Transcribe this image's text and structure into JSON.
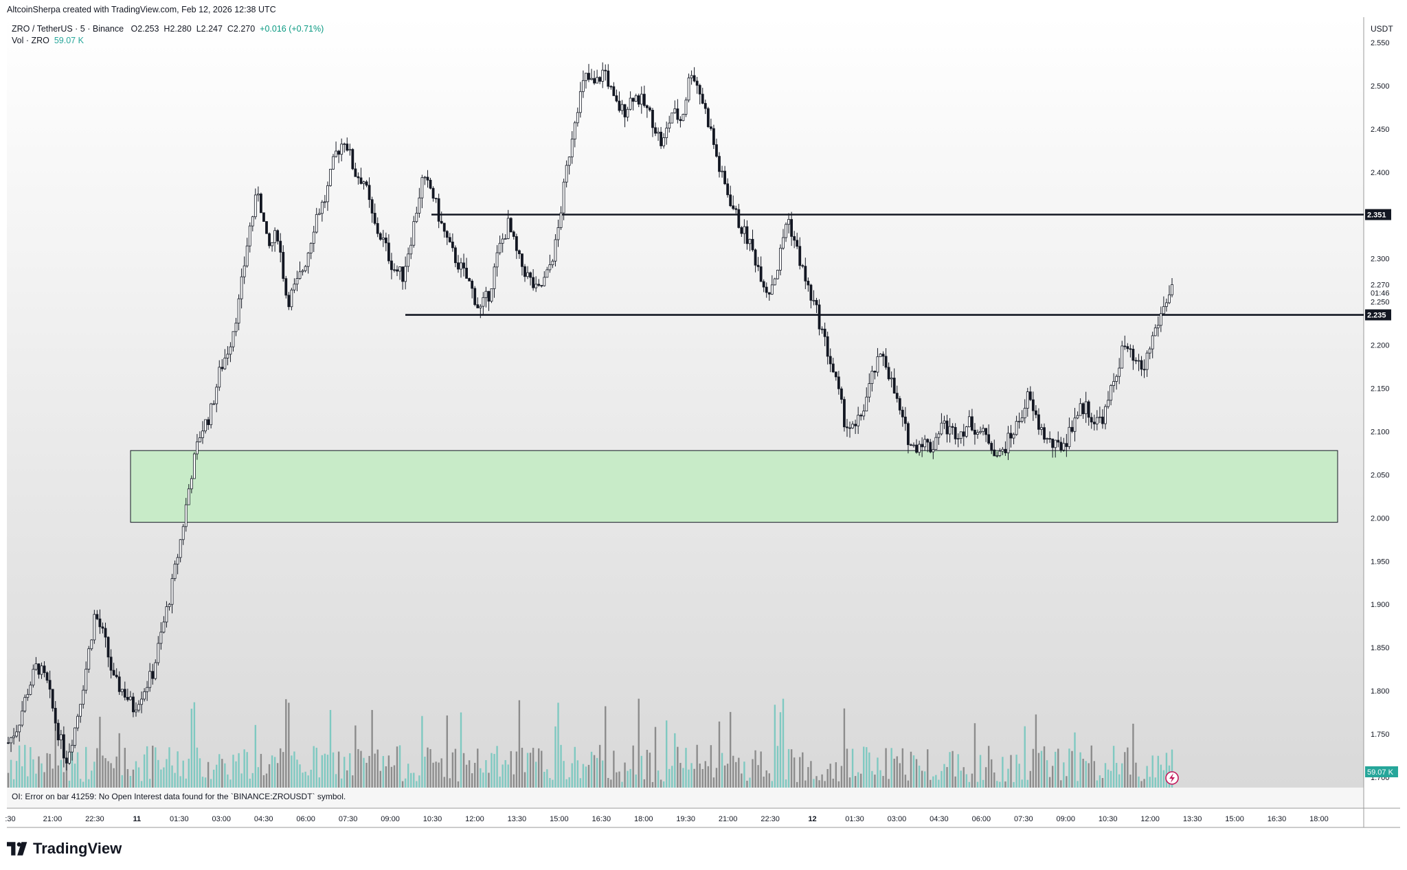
{
  "credit": "AltcoinSherpa created with TradingView.com, Feb 12, 2026 12:38 UTC",
  "legend": {
    "symbol": "ZRO / TetherUS · 5 · Binance",
    "open_label": "O",
    "open": "2.253",
    "high_label": "H",
    "high": "2.280",
    "low_label": "L",
    "low": "2.247",
    "close_label": "C",
    "close": "2.270",
    "change": "+0.016 (+0.71%)",
    "vol_label": "Vol · ZRO",
    "vol_value": "59.07 K"
  },
  "oi_error": "OI: Error on bar 41259: No Open Interest data found for the `BINANCE:ZROUSDT` symbol.",
  "brand": "TradingView",
  "currency": "USDT",
  "colors": {
    "candle": "#131722",
    "vol_up": "#7fc9c1",
    "vol_down": "#8c8c8c",
    "zone_fill": "#c8ebc8",
    "zone_stroke": "#131722",
    "vol_badge": "#26a69a"
  },
  "chart_data": {
    "type": "candlestick",
    "symbol": "ZRO / TetherUS",
    "interval": "5",
    "exchange": "Binance",
    "ylim": [
      1.695,
      2.575
    ],
    "y_ticks": [
      "2.550",
      "2.500",
      "2.450",
      "2.400",
      "2.300",
      "2.250",
      "2.200",
      "2.150",
      "2.100",
      "2.050",
      "2.000",
      "1.950",
      "1.900",
      "1.850",
      "1.800",
      "1.750",
      "1.700"
    ],
    "x_ticks": [
      ":30",
      "21:00",
      "22:30",
      "11",
      "01:30",
      "03:00",
      "04:30",
      "06:00",
      "07:30",
      "09:00",
      "10:30",
      "12:00",
      "13:30",
      "15:00",
      "16:30",
      "18:00",
      "19:30",
      "21:00",
      "22:30",
      "12",
      "01:30",
      "03:00",
      "04:30",
      "06:00",
      "07:30",
      "09:00",
      "10:30",
      "12:00",
      "13:30",
      "15:00",
      "16:30",
      "18:00"
    ],
    "x_bold": [
      "11",
      "12"
    ],
    "price_path": [
      [
        "20:05",
        1.74
      ],
      [
        "20:40",
        1.76
      ],
      [
        "21:00",
        1.8
      ],
      [
        "21:15",
        1.83
      ],
      [
        "21:45",
        1.81
      ],
      [
        "22:00",
        1.76
      ],
      [
        "22:05",
        1.72
      ],
      [
        "22:15",
        1.76
      ],
      [
        "22:30",
        1.82
      ],
      [
        "22:50",
        1.89
      ],
      [
        "23:00",
        1.86
      ],
      [
        "23:10",
        1.81
      ],
      [
        "23:20",
        1.8
      ],
      [
        "23:30",
        1.78
      ],
      [
        "23:45",
        1.8
      ],
      [
        "00:05",
        1.82
      ],
      [
        "00:20",
        1.87
      ],
      [
        "00:35",
        1.92
      ],
      [
        "00:50",
        1.98
      ],
      [
        "01:00",
        2.05
      ],
      [
        "01:10",
        2.1
      ],
      [
        "01:25",
        2.12
      ],
      [
        "01:40",
        2.17
      ],
      [
        "02:00",
        2.2
      ],
      [
        "02:20",
        2.25
      ],
      [
        "02:35",
        2.33
      ],
      [
        "02:45",
        2.38
      ],
      [
        "02:55",
        2.31
      ],
      [
        "03:05",
        2.33
      ],
      [
        "03:15",
        2.25
      ],
      [
        "03:30",
        2.27
      ],
      [
        "03:45",
        2.3
      ],
      [
        "04:00",
        2.35
      ],
      [
        "04:20",
        2.37
      ],
      [
        "04:40",
        2.42
      ],
      [
        "05:00",
        2.44
      ],
      [
        "05:15",
        2.4
      ],
      [
        "05:35",
        2.39
      ],
      [
        "05:50",
        2.34
      ],
      [
        "06:10",
        2.32
      ],
      [
        "06:30",
        2.29
      ],
      [
        "06:50",
        2.28
      ],
      [
        "07:10",
        2.33
      ],
      [
        "07:30",
        2.39
      ],
      [
        "08:00",
        2.38
      ],
      [
        "08:20",
        2.34
      ],
      [
        "08:40",
        2.31
      ],
      [
        "09:00",
        2.29
      ],
      [
        "09:20",
        2.27
      ],
      [
        "09:40",
        2.24
      ],
      [
        "10:00",
        2.26
      ],
      [
        "10:20",
        2.31
      ],
      [
        "10:40",
        2.34
      ],
      [
        "11:00",
        2.3
      ],
      [
        "11:20",
        2.28
      ],
      [
        "11:40",
        2.26
      ],
      [
        "12:00",
        2.28
      ],
      [
        "12:15",
        2.32
      ],
      [
        "12:30",
        2.4
      ],
      [
        "12:45",
        2.47
      ],
      [
        "13:00",
        2.51
      ],
      [
        "13:30",
        2.5
      ],
      [
        "14:00",
        2.52
      ],
      [
        "14:30",
        2.48
      ],
      [
        "15:00",
        2.47
      ],
      [
        "15:30",
        2.49
      ],
      [
        "16:00",
        2.48
      ],
      [
        "16:30",
        2.46
      ],
      [
        "16:50",
        2.43
      ],
      [
        "17:10",
        2.47
      ],
      [
        "17:30",
        2.46
      ],
      [
        "17:50",
        2.52
      ],
      [
        "18:10",
        2.49
      ],
      [
        "18:30",
        2.45
      ],
      [
        "18:50",
        2.4
      ],
      [
        "19:10",
        2.37
      ],
      [
        "19:30",
        2.34
      ],
      [
        "19:50",
        2.32
      ],
      [
        "20:10",
        2.29
      ],
      [
        "20:30",
        2.26
      ],
      [
        "20:50",
        2.29
      ],
      [
        "21:10",
        2.35
      ],
      [
        "21:30",
        2.31
      ],
      [
        "21:50",
        2.27
      ],
      [
        "22:10",
        2.24
      ],
      [
        "22:30",
        2.2
      ],
      [
        "22:50",
        2.16
      ],
      [
        "23:10",
        2.11
      ],
      [
        "23:30",
        2.1
      ],
      [
        "23:50",
        2.13
      ],
      [
        "00:10",
        2.17
      ],
      [
        "00:30",
        2.19
      ],
      [
        "00:50",
        2.15
      ],
      [
        "01:10",
        2.11
      ],
      [
        "01:30",
        2.08
      ],
      [
        "02:00",
        2.09
      ],
      [
        "02:30",
        2.08
      ],
      [
        "03:00",
        2.11
      ],
      [
        "03:30",
        2.1
      ],
      [
        "04:00",
        2.1
      ],
      [
        "04:30",
        2.11
      ],
      [
        "05:00",
        2.1
      ],
      [
        "05:30",
        2.09
      ],
      [
        "06:00",
        2.07
      ],
      [
        "06:30",
        2.09
      ],
      [
        "07:00",
        2.11
      ],
      [
        "07:30",
        2.14
      ],
      [
        "08:00",
        2.11
      ],
      [
        "08:30",
        2.09
      ],
      [
        "09:00",
        2.08
      ],
      [
        "09:20",
        2.09
      ],
      [
        "09:40",
        2.12
      ],
      [
        "10:00",
        2.13
      ],
      [
        "10:20",
        2.11
      ],
      [
        "10:40",
        2.12
      ],
      [
        "11:00",
        2.16
      ],
      [
        "11:15",
        2.2
      ],
      [
        "11:30",
        2.18
      ],
      [
        "11:45",
        2.17
      ],
      [
        "12:00",
        2.21
      ],
      [
        "12:15",
        2.24
      ],
      [
        "12:30",
        2.27
      ]
    ],
    "levels": [
      {
        "price": 2.351,
        "label": "2.351"
      },
      {
        "price": 2.235,
        "label": "2.235"
      }
    ],
    "zone": {
      "top": 2.078,
      "bottom": 1.995,
      "fill": "#c8ebc8"
    },
    "last_price": {
      "price": 2.27,
      "label": "2.270",
      "countdown": "01:46"
    },
    "volume_badge": "59.07 K"
  }
}
